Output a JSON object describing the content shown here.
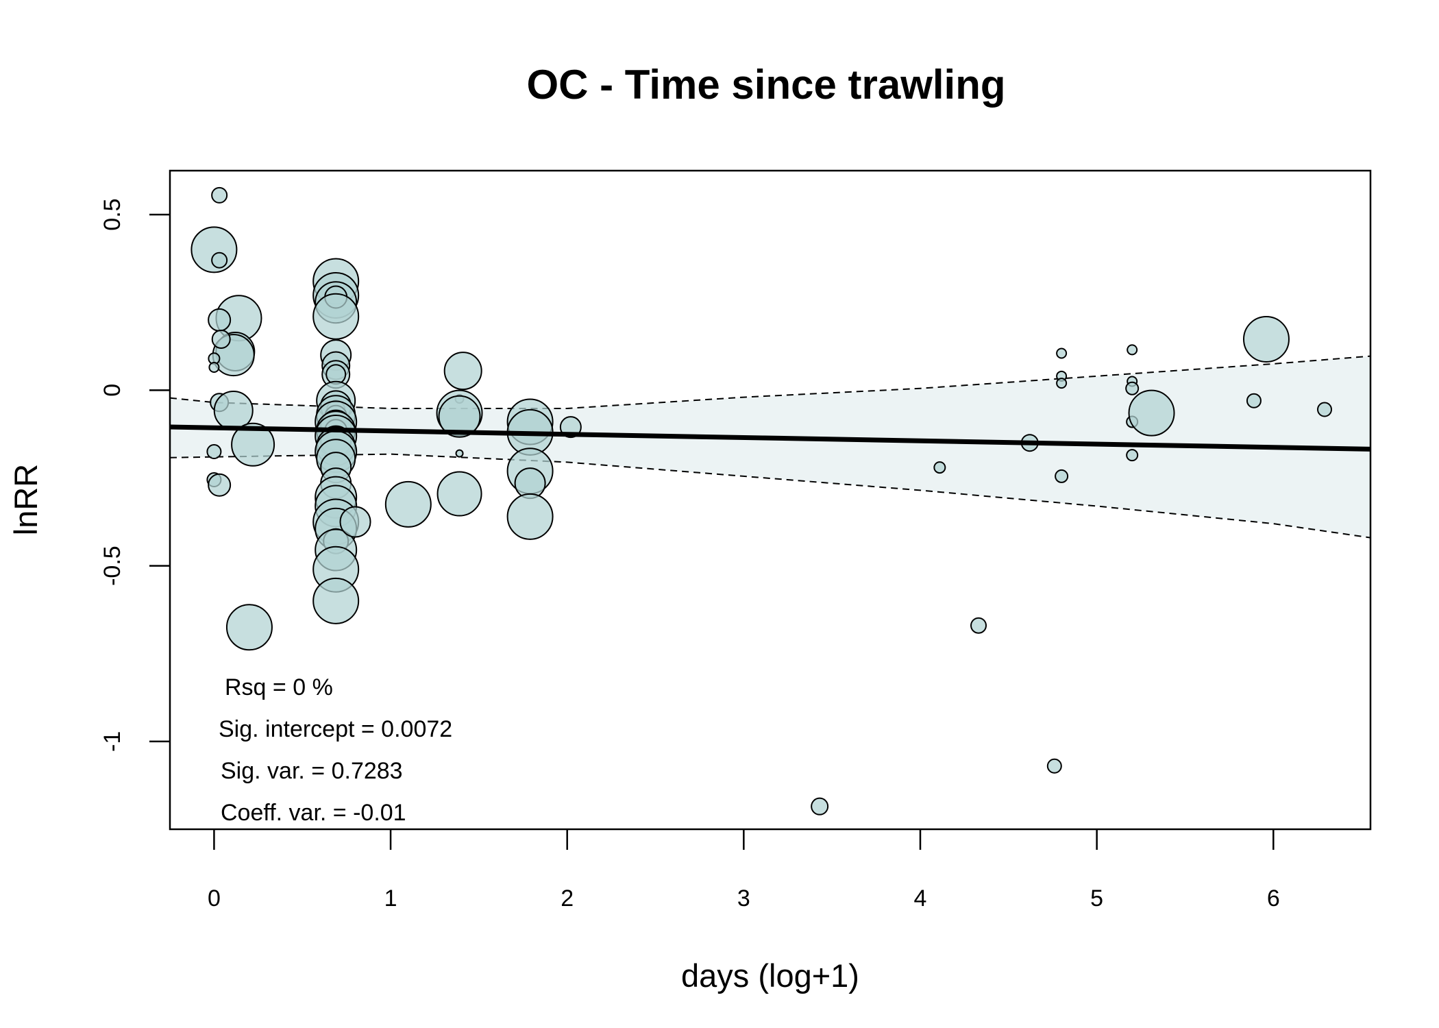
{
  "chart_data": {
    "type": "scatter",
    "title": "OC - Time since trawling",
    "xlabel": "days (log+1)",
    "ylabel": "lnRR",
    "xlim": [
      -0.25,
      6.55
    ],
    "ylim": [
      -1.25,
      0.625
    ],
    "x_ticks": [
      0,
      1,
      2,
      3,
      4,
      5,
      6
    ],
    "x_tick_labels": [
      "0",
      "1",
      "2",
      "3",
      "4",
      "5",
      "6"
    ],
    "y_ticks": [
      0.5,
      0,
      -0.5,
      -1
    ],
    "y_tick_labels": [
      "0.5",
      "0",
      "-0.5",
      "-1"
    ],
    "grid": false,
    "point_fill": "#b2d3d3",
    "point_stroke": "#000000",
    "band_fill": "#ecf3f4",
    "fit_color": "#000000",
    "regression": {
      "intercept": -0.107,
      "slope": -0.0093,
      "ci_lower": [
        [
          -0.25,
          -0.192
        ],
        [
          0,
          -0.19
        ],
        [
          1,
          -0.182
        ],
        [
          2,
          -0.205
        ],
        [
          3,
          -0.245
        ],
        [
          4,
          -0.285
        ],
        [
          5,
          -0.33
        ],
        [
          6,
          -0.38
        ],
        [
          6.55,
          -0.42
        ]
      ],
      "ci_upper": [
        [
          -0.25,
          -0.022
        ],
        [
          0,
          -0.035
        ],
        [
          1,
          -0.052
        ],
        [
          2,
          -0.052
        ],
        [
          3,
          -0.02
        ],
        [
          4,
          0.005
        ],
        [
          5,
          0.04
        ],
        [
          6,
          0.075
        ],
        [
          6.55,
          0.097
        ]
      ]
    },
    "annotations": {
      "rsq": "Rsq = 0 %",
      "sig_intercept": "Sig. intercept = 0.0072",
      "sig_var": "Sig. var. = 0.7283",
      "coeff_var": "Coeff. var. = -0.01"
    },
    "points": [
      {
        "x": 0.03,
        "y": 0.555,
        "r": 11
      },
      {
        "x": 0.0,
        "y": 0.4,
        "r": 33
      },
      {
        "x": 0.03,
        "y": 0.37,
        "r": 11
      },
      {
        "x": 0.14,
        "y": 0.205,
        "r": 33
      },
      {
        "x": 0.03,
        "y": 0.2,
        "r": 16
      },
      {
        "x": 0.12,
        "y": 0.11,
        "r": 28
      },
      {
        "x": 0.11,
        "y": 0.1,
        "r": 30
      },
      {
        "x": 0.04,
        "y": 0.145,
        "r": 13
      },
      {
        "x": 0.0,
        "y": 0.09,
        "r": 8
      },
      {
        "x": 0.0,
        "y": 0.065,
        "r": 7
      },
      {
        "x": 0.03,
        "y": -0.035,
        "r": 13
      },
      {
        "x": 0.11,
        "y": -0.058,
        "r": 28
      },
      {
        "x": 0.0,
        "y": -0.175,
        "r": 10
      },
      {
        "x": 0.22,
        "y": -0.155,
        "r": 31
      },
      {
        "x": 0.0,
        "y": -0.255,
        "r": 10
      },
      {
        "x": 0.03,
        "y": -0.27,
        "r": 16
      },
      {
        "x": 0.2,
        "y": -0.675,
        "r": 33
      },
      {
        "x": 0.69,
        "y": 0.31,
        "r": 33
      },
      {
        "x": 0.69,
        "y": 0.27,
        "r": 33
      },
      {
        "x": 0.69,
        "y": 0.25,
        "r": 30
      },
      {
        "x": 0.69,
        "y": 0.265,
        "r": 16
      },
      {
        "x": 0.69,
        "y": 0.21,
        "r": 33
      },
      {
        "x": 0.69,
        "y": 0.1,
        "r": 22
      },
      {
        "x": 0.69,
        "y": 0.07,
        "r": 20
      },
      {
        "x": 0.69,
        "y": 0.045,
        "r": 20
      },
      {
        "x": 0.69,
        "y": 0.045,
        "r": 14
      },
      {
        "x": 0.69,
        "y": -0.03,
        "r": 28
      },
      {
        "x": 0.69,
        "y": -0.045,
        "r": 22
      },
      {
        "x": 0.69,
        "y": -0.055,
        "r": 13
      },
      {
        "x": 0.69,
        "y": -0.07,
        "r": 28
      },
      {
        "x": 0.69,
        "y": -0.075,
        "r": 16
      },
      {
        "x": 0.69,
        "y": -0.09,
        "r": 30
      },
      {
        "x": 0.69,
        "y": -0.1,
        "r": 22
      },
      {
        "x": 0.69,
        "y": -0.115,
        "r": 28
      },
      {
        "x": 0.69,
        "y": -0.115,
        "r": 16
      },
      {
        "x": 0.69,
        "y": -0.13,
        "r": 30
      },
      {
        "x": 0.69,
        "y": -0.145,
        "r": 22
      },
      {
        "x": 0.69,
        "y": -0.16,
        "r": 28
      },
      {
        "x": 0.69,
        "y": -0.175,
        "r": 30
      },
      {
        "x": 0.69,
        "y": -0.195,
        "r": 28
      },
      {
        "x": 0.69,
        "y": -0.22,
        "r": 22
      },
      {
        "x": 0.69,
        "y": -0.265,
        "r": 22
      },
      {
        "x": 0.69,
        "y": -0.305,
        "r": 30
      },
      {
        "x": 0.69,
        "y": -0.33,
        "r": 30
      },
      {
        "x": 0.69,
        "y": -0.375,
        "r": 33
      },
      {
        "x": 0.69,
        "y": -0.395,
        "r": 30
      },
      {
        "x": 0.69,
        "y": -0.43,
        "r": 18
      },
      {
        "x": 0.69,
        "y": -0.455,
        "r": 30
      },
      {
        "x": 0.69,
        "y": -0.51,
        "r": 33
      },
      {
        "x": 0.69,
        "y": -0.6,
        "r": 33
      },
      {
        "x": 0.8,
        "y": -0.375,
        "r": 22
      },
      {
        "x": 1.1,
        "y": -0.325,
        "r": 33
      },
      {
        "x": 1.39,
        "y": -0.025,
        "r": 6
      },
      {
        "x": 1.39,
        "y": -0.065,
        "r": 33
      },
      {
        "x": 1.39,
        "y": -0.075,
        "r": 30
      },
      {
        "x": 1.41,
        "y": 0.055,
        "r": 27
      },
      {
        "x": 1.39,
        "y": -0.18,
        "r": 5
      },
      {
        "x": 1.39,
        "y": -0.295,
        "r": 32
      },
      {
        "x": 1.79,
        "y": -0.09,
        "r": 33
      },
      {
        "x": 1.79,
        "y": -0.12,
        "r": 33
      },
      {
        "x": 1.79,
        "y": -0.23,
        "r": 33
      },
      {
        "x": 1.79,
        "y": -0.265,
        "r": 22
      },
      {
        "x": 1.79,
        "y": -0.36,
        "r": 33
      },
      {
        "x": 2.02,
        "y": -0.105,
        "r": 15
      },
      {
        "x": 3.43,
        "y": -1.185,
        "r": 12
      },
      {
        "x": 4.11,
        "y": -0.22,
        "r": 8
      },
      {
        "x": 4.33,
        "y": -0.67,
        "r": 11
      },
      {
        "x": 4.62,
        "y": -0.15,
        "r": 12
      },
      {
        "x": 4.76,
        "y": -1.07,
        "r": 10
      },
      {
        "x": 4.8,
        "y": 0.105,
        "r": 7
      },
      {
        "x": 4.8,
        "y": 0.04,
        "r": 7
      },
      {
        "x": 4.8,
        "y": 0.02,
        "r": 7
      },
      {
        "x": 4.8,
        "y": -0.245,
        "r": 9
      },
      {
        "x": 5.2,
        "y": 0.115,
        "r": 7
      },
      {
        "x": 5.2,
        "y": 0.025,
        "r": 7
      },
      {
        "x": 5.2,
        "y": 0.005,
        "r": 9
      },
      {
        "x": 5.2,
        "y": -0.09,
        "r": 8
      },
      {
        "x": 5.2,
        "y": -0.185,
        "r": 8
      },
      {
        "x": 5.31,
        "y": -0.065,
        "r": 33
      },
      {
        "x": 5.89,
        "y": -0.03,
        "r": 10
      },
      {
        "x": 5.96,
        "y": 0.145,
        "r": 33
      },
      {
        "x": 6.29,
        "y": -0.055,
        "r": 10
      }
    ]
  }
}
